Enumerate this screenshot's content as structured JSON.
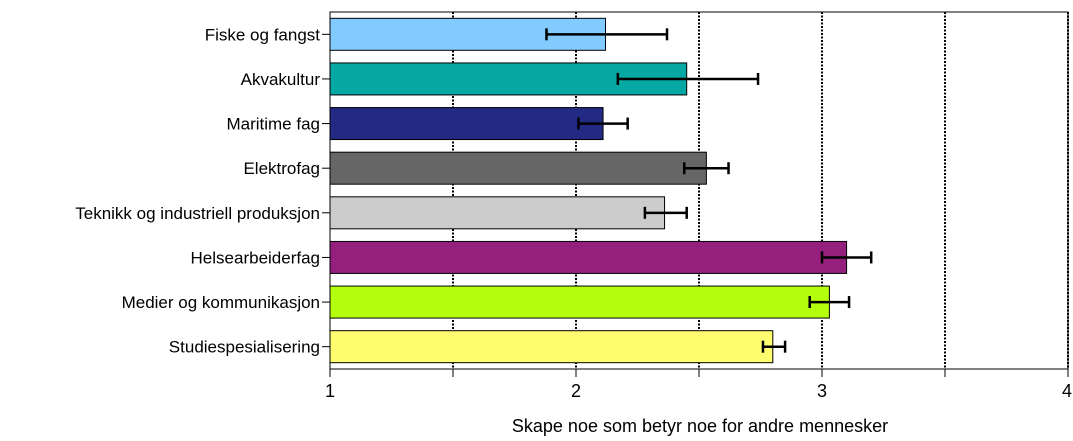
{
  "chart_data": {
    "type": "bar",
    "orientation": "horizontal",
    "xlabel": "Skape noe som betyr noe for andre mennesker",
    "xlim": [
      1,
      4
    ],
    "xticks": [
      "1",
      "2",
      "3",
      "4"
    ],
    "grid": "vertical lines at 1.5, 2, 2.5, 3, 3.5, 4",
    "error_bars": true,
    "categories": [
      "Fiske og fangst",
      "Akvakultur",
      "Maritime fag",
      "Elektrofag",
      "Teknikk og industriell produksjon",
      "Helsearbeiderfag",
      "Medier og kommunikasjon",
      "Studiespesialisering"
    ],
    "values": [
      2.12,
      2.45,
      2.11,
      2.53,
      2.36,
      3.1,
      3.03,
      2.8
    ],
    "error_low": [
      1.88,
      2.17,
      2.01,
      2.44,
      2.28,
      3.0,
      2.95,
      2.76
    ],
    "error_high": [
      2.37,
      2.74,
      2.21,
      2.62,
      2.45,
      3.2,
      3.11,
      2.85
    ],
    "colors": [
      "#82cbff",
      "#05a8a2",
      "#232a84",
      "#666666",
      "#cccccc",
      "#951f7c",
      "#b4ff0e",
      "#fffc6f"
    ]
  }
}
